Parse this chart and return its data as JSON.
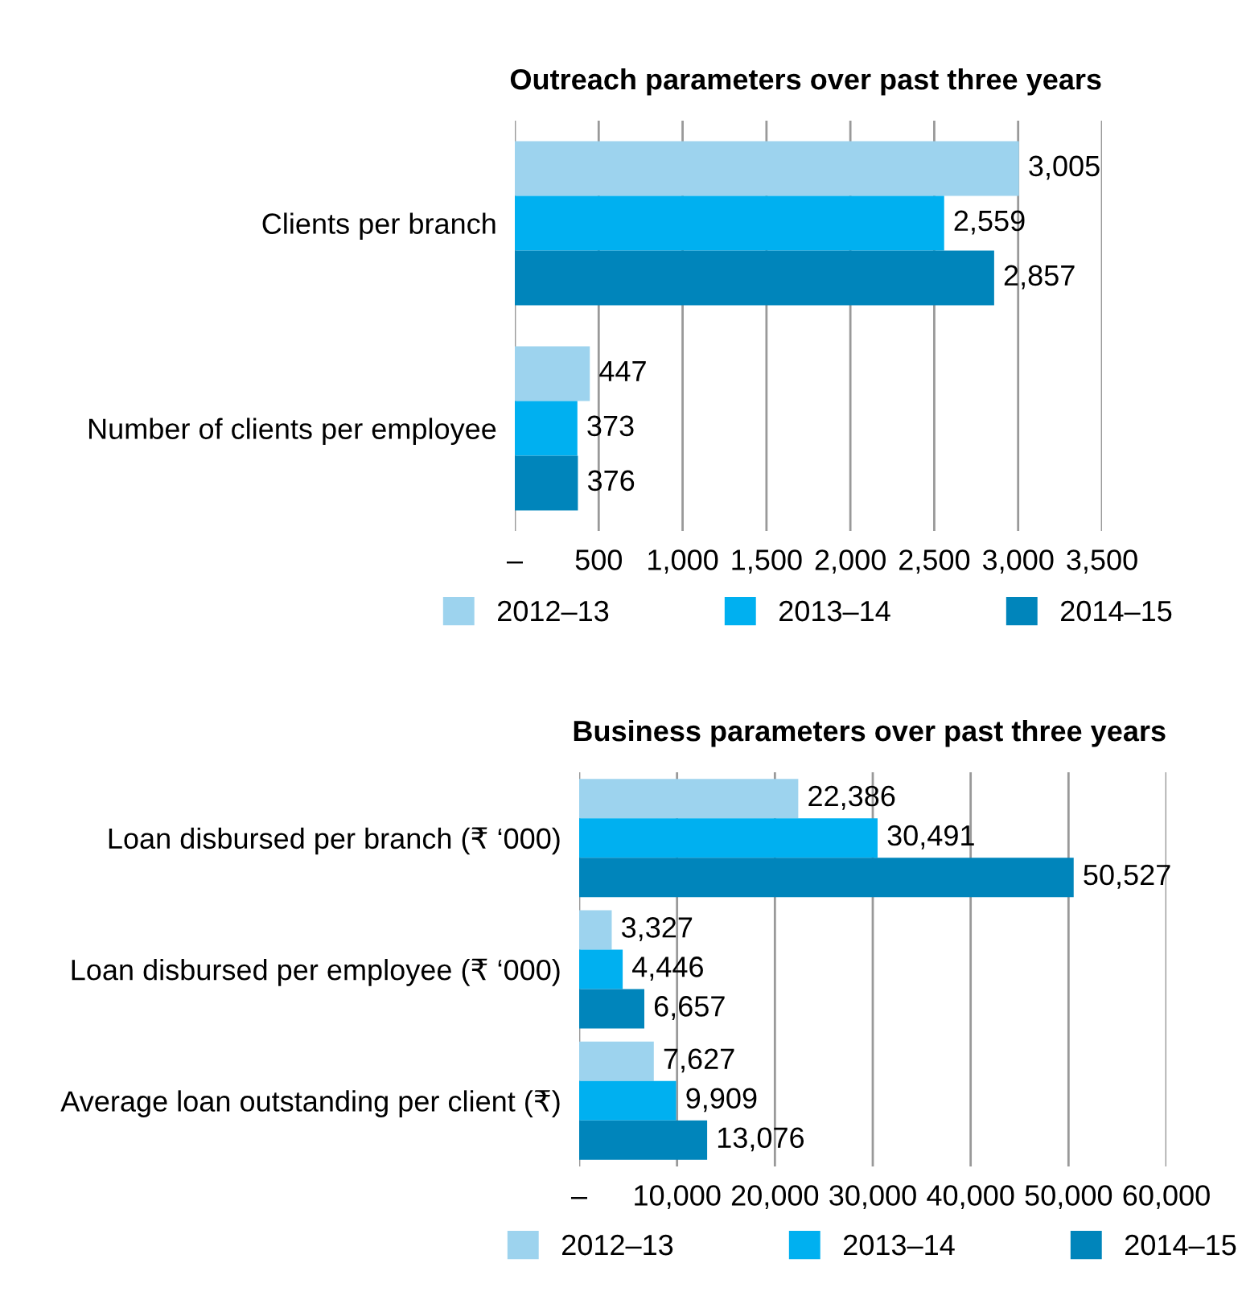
{
  "chart_data": [
    {
      "type": "bar",
      "orientation": "horizontal",
      "title": "Outreach parameters over past three years",
      "categories": [
        "Clients per branch",
        "Number of clients per employee"
      ],
      "series": [
        {
          "name": "2012–13",
          "color": "#9dd3ee",
          "values": [
            3005,
            447
          ],
          "value_labels": [
            "3,005",
            "447"
          ]
        },
        {
          "name": "2013–14",
          "color": "#00b0f0",
          "values": [
            2559,
            373
          ],
          "value_labels": [
            "2,559",
            "373"
          ]
        },
        {
          "name": "2014–15",
          "color": "#0085bb",
          "values": [
            2857,
            376
          ],
          "value_labels": [
            "2,857",
            "376"
          ]
        }
      ],
      "xlim": [
        0,
        3500
      ],
      "xticks": [
        {
          "value": 0,
          "label": "–"
        },
        {
          "value": 500,
          "label": "500"
        },
        {
          "value": 1000,
          "label": "1,000"
        },
        {
          "value": 1500,
          "label": "1,500"
        },
        {
          "value": 2000,
          "label": "2,000"
        },
        {
          "value": 2500,
          "label": "2,500"
        },
        {
          "value": 3000,
          "label": "3,000"
        },
        {
          "value": 3500,
          "label": "3,500"
        }
      ],
      "grid": "x",
      "legend": "bottom"
    },
    {
      "type": "bar",
      "orientation": "horizontal",
      "title": "Business parameters over past three years",
      "categories": [
        "Loan disbursed per branch (₹ ‘000)",
        "Loan disbursed per employee (₹ ‘000)",
        "Average loan outstanding per client (₹)"
      ],
      "series": [
        {
          "name": "2012–13",
          "color": "#9dd3ee",
          "values": [
            22386,
            3327,
            7627
          ],
          "value_labels": [
            "22,386",
            "3,327",
            "7,627"
          ]
        },
        {
          "name": "2013–14",
          "color": "#00b0f0",
          "values": [
            30491,
            4446,
            9909
          ],
          "value_labels": [
            "30,491",
            "4,446",
            "9,909"
          ]
        },
        {
          "name": "2014–15",
          "color": "#0085bb",
          "values": [
            50527,
            6657,
            13076
          ],
          "value_labels": [
            "50,527",
            "6,657",
            "13,076"
          ]
        }
      ],
      "xlim": [
        0,
        60000
      ],
      "xticks": [
        {
          "value": 0,
          "label": "–"
        },
        {
          "value": 10000,
          "label": "10,000"
        },
        {
          "value": 20000,
          "label": "20,000"
        },
        {
          "value": 30000,
          "label": "30,000"
        },
        {
          "value": 40000,
          "label": "40,000"
        },
        {
          "value": 50000,
          "label": "50,000"
        },
        {
          "value": 60000,
          "label": "60,000"
        }
      ],
      "grid": "x",
      "legend": "bottom"
    }
  ]
}
